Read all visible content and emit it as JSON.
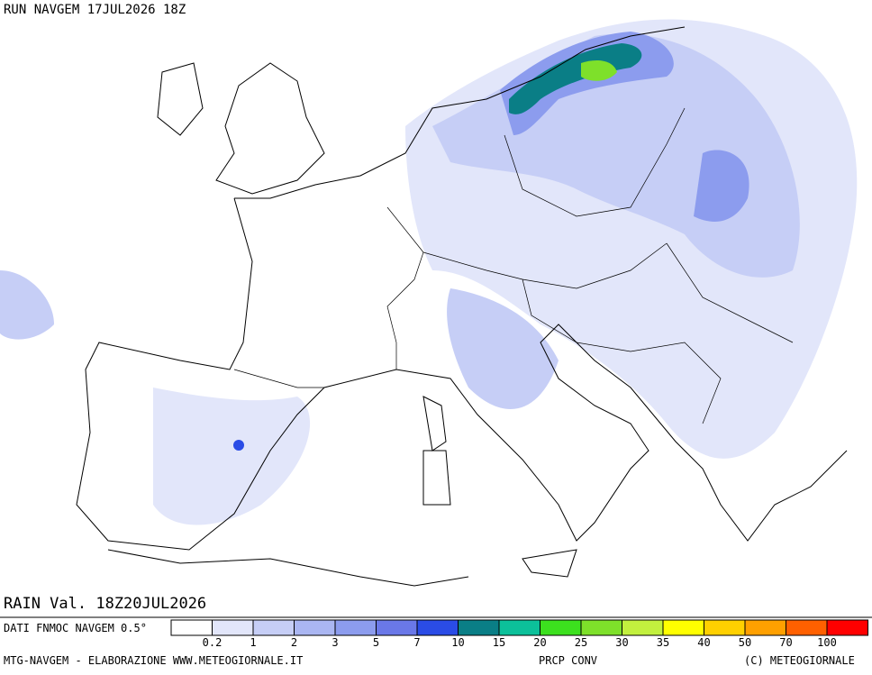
{
  "header": {
    "run": "RUN NAVGEM 17JUL2026 18Z",
    "valid": "RAIN Val. 18Z20JUL2026"
  },
  "legend": {
    "source": "DATI FNMOC NAVGEM 0.5°",
    "levels": [
      0.2,
      1,
      2,
      3,
      5,
      7,
      10,
      15,
      20,
      25,
      30,
      35,
      40,
      50,
      70,
      100
    ],
    "colors": [
      "#ffffff",
      "#e2e6fa",
      "#c6cef6",
      "#aab6f2",
      "#8c9cee",
      "#6a78e8",
      "#2a4ce6",
      "#0a7e86",
      "#0cc09a",
      "#3ce01e",
      "#7ee02a",
      "#c2f03e",
      "#ffff00",
      "#ffd000",
      "#ffa000",
      "#ff6000",
      "#ff0000"
    ]
  },
  "footer": {
    "credit": "MTG-NAVGEM - ELABORAZIONE WWW.METEOGIORNALE.IT",
    "product": "PRCP CONV",
    "copyright": "(C) METEOGIORNALE"
  }
}
